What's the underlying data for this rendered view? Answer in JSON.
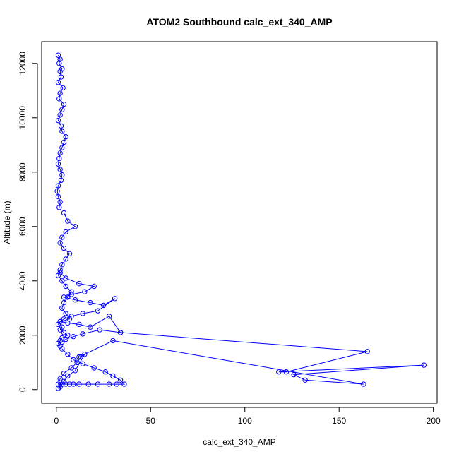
{
  "chart_data": {
    "type": "scatter",
    "title": "ATOM2 Southbound calc_ext_340_AMP",
    "xlabel": "calc_ext_340_AMP",
    "ylabel": "Altitude (m)",
    "xlim": [
      -7.8,
      202
    ],
    "ylim": [
      -500,
      12800
    ],
    "x_ticks": [
      0,
      50,
      100,
      150,
      200
    ],
    "x_tick_labels": [
      "0",
      "50",
      "100",
      "150",
      "200"
    ],
    "y_ticks": [
      0,
      2000,
      4000,
      6000,
      8000,
      10000,
      12000
    ],
    "y_tick_labels": [
      "0",
      "2000",
      "4000",
      "6000",
      "8000",
      "10000",
      "12000"
    ],
    "grid": false,
    "legend": "none",
    "series_color": "#0000ff",
    "marker": "open-circle",
    "connected": true,
    "series": [
      {
        "x": [
          1,
          2,
          1.5,
          3,
          2,
          2.5,
          1,
          3.5,
          2,
          1.5,
          4,
          3,
          2,
          1,
          2.5,
          3,
          5,
          4,
          3,
          2,
          1.5,
          1,
          2,
          3,
          2.5,
          1,
          0.5,
          1,
          2,
          1.5
        ],
        "y": [
          12300,
          12150,
          12000,
          11800,
          11700,
          11500,
          11300,
          11100,
          10900,
          10700,
          10500,
          10300,
          10100,
          9900,
          9700,
          9500,
          9300,
          9100,
          8900,
          8700,
          8500,
          8300,
          8100,
          7900,
          7700,
          7500,
          7300,
          7100,
          6900,
          6700
        ]
      },
      {
        "x": [
          4,
          6,
          10,
          5,
          3,
          2,
          4,
          7,
          5,
          3,
          2,
          1,
          3,
          5,
          8,
          6,
          4,
          3,
          5,
          7,
          2,
          1,
          3,
          2,
          4,
          6,
          3,
          2,
          1,
          2
        ],
        "y": [
          6500,
          6200,
          6000,
          5800,
          5600,
          5400,
          5200,
          5000,
          4800,
          4600,
          4400,
          4200,
          4000,
          3800,
          3600,
          3400,
          3200,
          3000,
          2800,
          2600,
          2500,
          2400,
          2300,
          2200,
          2100,
          2000,
          1900,
          1800,
          1700,
          1600
        ]
      },
      {
        "x": [
          2,
          5,
          12,
          20,
          15,
          8,
          4,
          10,
          18,
          25,
          31,
          22,
          14,
          8,
          4,
          2,
          6,
          12,
          18,
          28,
          34,
          23,
          14,
          9,
          5,
          3
        ],
        "y": [
          4300,
          4100,
          3900,
          3800,
          3600,
          3500,
          3400,
          3300,
          3200,
          3100,
          3350,
          2900,
          2800,
          2700,
          2600,
          2500,
          2450,
          2400,
          2300,
          2700,
          2100,
          2200,
          2050,
          1950,
          1850,
          1750
        ]
      },
      {
        "x": [
          34,
          165,
          122,
          118,
          195,
          126,
          132,
          163,
          30,
          12
        ],
        "y": [
          2100,
          1400,
          650,
          650,
          900,
          550,
          350,
          200,
          1800,
          1200
        ]
      },
      {
        "x": [
          3,
          6,
          9,
          14,
          20,
          26,
          30,
          34,
          36,
          32,
          28,
          22,
          17,
          12,
          9,
          7,
          5,
          3,
          1,
          2,
          4,
          8,
          11,
          13,
          15,
          10,
          6,
          4,
          2,
          1
        ],
        "y": [
          1500,
          1300,
          1100,
          950,
          800,
          650,
          500,
          350,
          200,
          200,
          200,
          200,
          200,
          200,
          200,
          200,
          200,
          200,
          200,
          400,
          600,
          800,
          1000,
          1200,
          1300,
          700,
          500,
          300,
          100,
          50
        ]
      }
    ]
  }
}
